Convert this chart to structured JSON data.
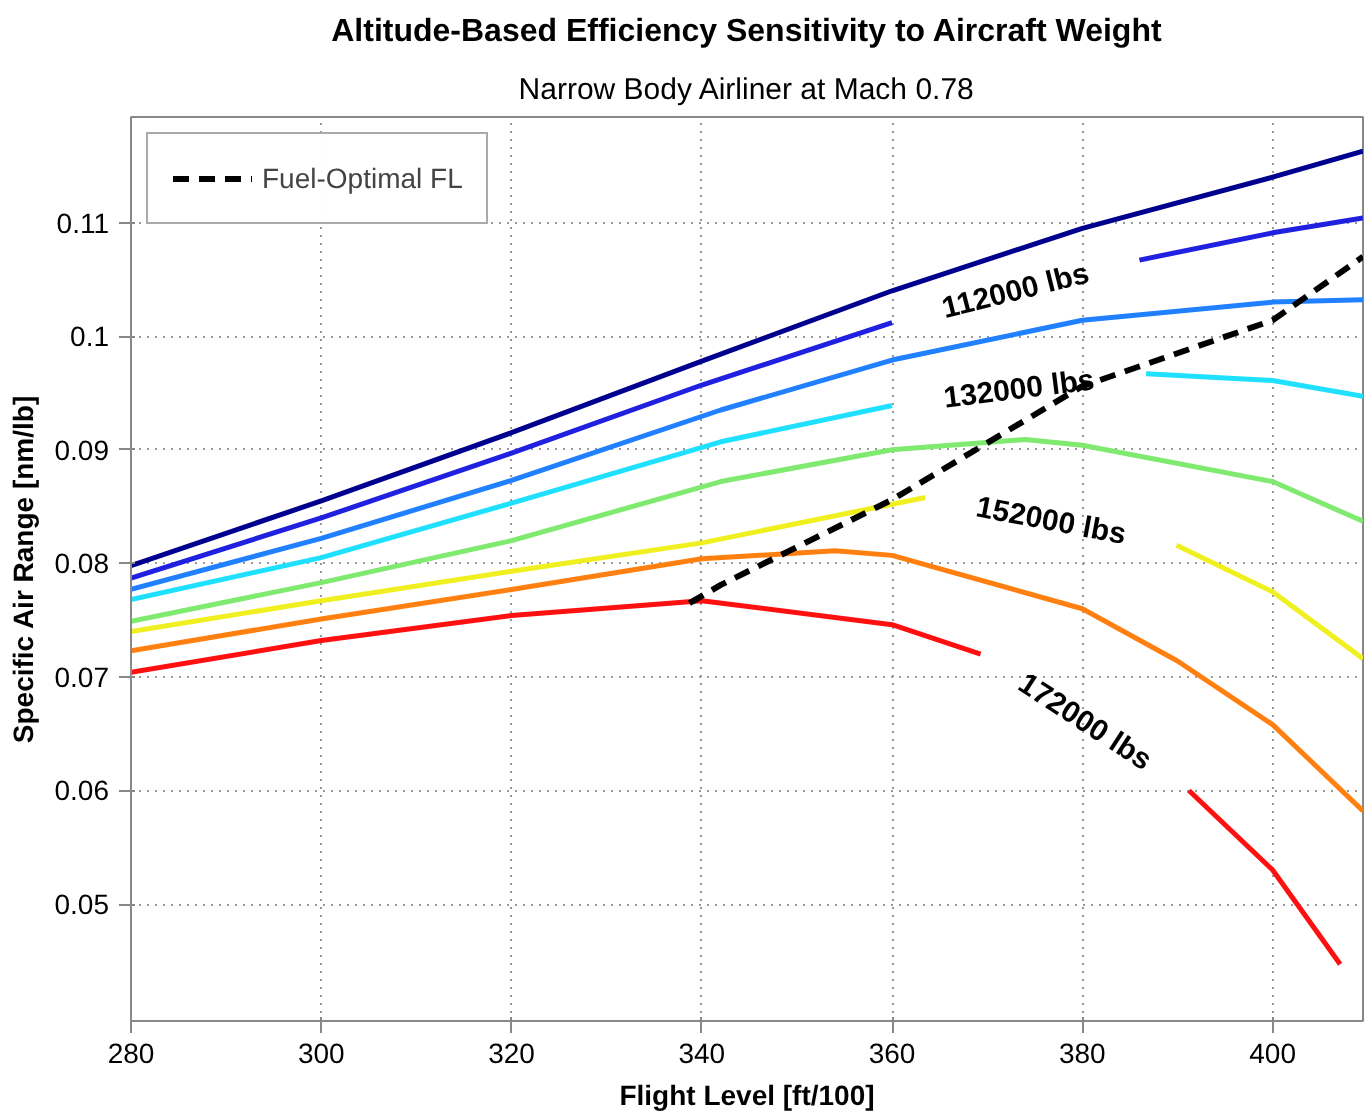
{
  "chart_data": {
    "type": "line",
    "title": "Altitude-Based Efficiency Sensitivity to Aircraft Weight",
    "subtitle": "Narrow Body Airliner at Mach 0.78",
    "xlabel": "Flight Level [ft/100]",
    "ylabel": "Specific Air Range [nm/lb]",
    "xlim": [
      280,
      409.5
    ],
    "ylim": [
      0.0397,
      0.1193
    ],
    "xticks": [
      280,
      300,
      320,
      340,
      360,
      380,
      400
    ],
    "yticks": [
      0.05,
      0.06,
      0.07,
      0.08,
      0.09,
      0.1,
      0.11
    ],
    "grid": true,
    "legend": "top left",
    "line_style": "solid",
    "marker": "none",
    "series": [
      {
        "color": "#00008f",
        "x": [
          280,
          300,
          320,
          340,
          360,
          380,
          400,
          409.5
        ],
        "values": [
          0.0798,
          0.0855,
          0.0915,
          0.0978,
          0.104,
          0.1095,
          0.114,
          0.1163
        ]
      },
      {
        "color": "#2020e0",
        "x": [
          280,
          300,
          320,
          340,
          360,
          373,
          386,
          400,
          409.5
        ],
        "values": [
          0.0787,
          0.084,
          0.0897,
          0.0957,
          0.1012,
          null,
          0.1067,
          0.1091,
          0.1104
        ]
      },
      {
        "color": "#2080ff",
        "x": [
          280,
          300,
          320,
          342,
          360,
          380,
          400,
          409.5
        ],
        "values": [
          0.0777,
          0.0822,
          0.0873,
          0.0935,
          0.0979,
          0.1014,
          0.103,
          0.1032
        ]
      },
      {
        "color": "#20e0ff",
        "x": [
          280,
          300,
          320,
          342,
          360,
          373,
          386.7,
          400,
          409.5
        ],
        "values": [
          0.0768,
          0.0805,
          0.0853,
          0.0907,
          0.0939,
          null,
          0.0967,
          0.0961,
          0.0947
        ]
      },
      {
        "color": "#80ea70",
        "x": [
          280,
          300,
          320,
          342,
          360,
          374,
          380,
          400,
          409.5
        ],
        "values": [
          0.0749,
          0.0783,
          0.082,
          0.0872,
          0.09,
          0.0909,
          0.0904,
          0.0872,
          0.0837
        ]
      },
      {
        "color": "#f0f020",
        "x": [
          280,
          300,
          320,
          340,
          363.5,
          376,
          389.9,
          400,
          409.5
        ],
        "values": [
          0.074,
          0.0767,
          0.0793,
          0.0818,
          0.0858,
          null,
          0.0816,
          0.0775,
          0.0716
        ]
      },
      {
        "color": "#ff8010",
        "x": [
          280,
          300,
          320,
          340,
          354,
          360,
          380,
          390,
          400,
          409.5
        ],
        "values": [
          0.0723,
          0.0751,
          0.0777,
          0.0804,
          0.0811,
          0.0807,
          0.076,
          0.0714,
          0.0658,
          0.0582
        ]
      },
      {
        "color": "#ff1010",
        "x": [
          280,
          300,
          320,
          340,
          360,
          369.3,
          380,
          391.2,
          400,
          407.1
        ],
        "values": [
          0.0704,
          0.0732,
          0.0754,
          0.0767,
          0.0746,
          0.072,
          null,
          0.06,
          0.053,
          0.0447
        ]
      },
      {
        "name": "Fuel-Optimal FL",
        "color": "#000000",
        "line_style": "dashed",
        "x": [
          338.7,
          342,
          360,
          380,
          400,
          409.5
        ],
        "values": [
          0.0765,
          0.0781,
          0.0856,
          0.0956,
          0.1014,
          0.107
        ]
      }
    ],
    "annotations": [
      "112000 lbs",
      "132000 lbs",
      "152000 lbs",
      "172000 lbs"
    ]
  }
}
